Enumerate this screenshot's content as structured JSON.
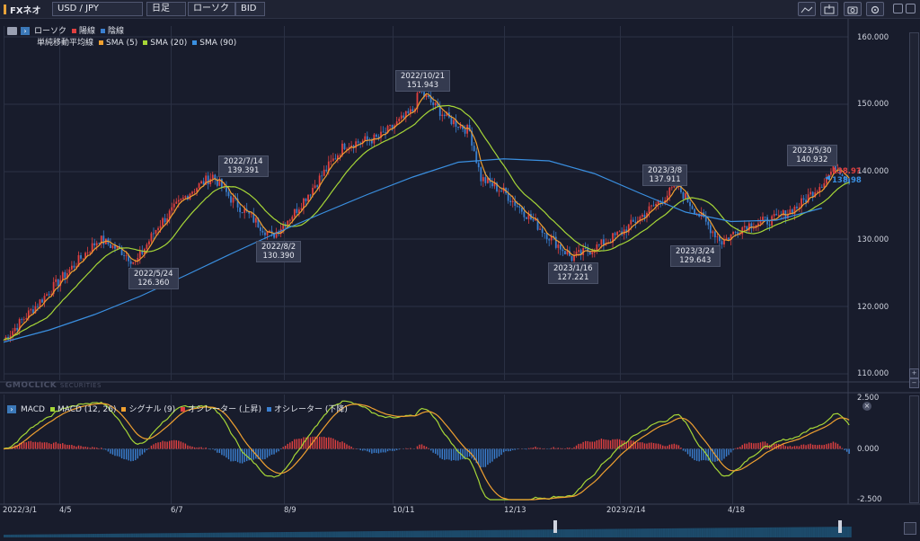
{
  "toolbar": {
    "brand": "FXネオ",
    "symbol": "USD / JPY",
    "timeframe": "日足",
    "chart_type": "ローソク",
    "price_side": "BID"
  },
  "legend_main": {
    "line1_label": "ローソク",
    "up_label": "陽線",
    "down_label": "陰線",
    "line2_label": "単純移動平均線",
    "sma5": "SMA (5)",
    "sma20": "SMA (20)",
    "sma90": "SMA (90)"
  },
  "legend_macd": {
    "title": "MACD",
    "macd": "MACD (12, 26)",
    "signal": "シグナル (9)",
    "osc_up": "オシレーター (上昇)",
    "osc_down": "オシレーター (下降)"
  },
  "watermark": {
    "brand": "GMOCLICK",
    "suffix": "SECURITIES"
  },
  "annotations": {
    "a1": {
      "date": "2022/5/24",
      "value": "126.360"
    },
    "a2": {
      "date": "2022/7/14",
      "value": "139.391"
    },
    "a3": {
      "date": "2022/8/2",
      "value": "130.390"
    },
    "a4": {
      "date": "2022/10/21",
      "value": "151.943"
    },
    "a5": {
      "date": "2023/1/16",
      "value": "127.221"
    },
    "a6": {
      "date": "2023/3/8",
      "value": "137.911"
    },
    "a7": {
      "date": "2023/3/24",
      "value": "129.643"
    },
    "a8": {
      "date": "2023/5/30",
      "value": "140.932"
    }
  },
  "price_tags": {
    "bid": "138.9?",
    "sma": "138.98"
  },
  "chart_data": {
    "type": "line",
    "y_axis": [
      "160.000",
      "150.000",
      "140.000",
      "130.000",
      "120.000",
      "110.000"
    ],
    "macd_axis": [
      "2.500",
      "0.000",
      "-2.500"
    ],
    "x_axis": [
      "2022/3/1",
      "4/5",
      "6/7",
      "8/9",
      "10/11",
      "12/13",
      "2023/2/14",
      "4/18"
    ],
    "ylim": [
      108.5,
      162.5
    ],
    "colors": {
      "up": "#e04040",
      "down": "#3a7fd0",
      "sma5": "#f0a030",
      "sma20": "#a6d637",
      "sma90": "#3a8fe0",
      "macd": "#a6d637",
      "signal": "#f0a030"
    },
    "series": [
      {
        "name": "SMA (90)",
        "x": [
          0,
          20,
          40,
          60,
          80,
          100,
          120,
          140,
          160,
          180,
          200,
          220,
          240,
          260,
          280,
          300,
          320,
          340,
          360
        ],
        "values": [
          114.7,
          116.5,
          118.8,
          121.5,
          124.6,
          127.8,
          130.9,
          133.8,
          136.6,
          139.2,
          141.4,
          141.9,
          141.6,
          139.7,
          136.8,
          134.0,
          132.6,
          132.8,
          134.6
        ]
      }
    ]
  }
}
